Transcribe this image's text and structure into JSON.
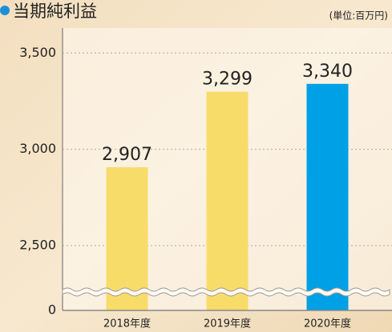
{
  "chart_data": {
    "type": "bar",
    "title": "当期純利益",
    "subtitle": "(単位:百万円)",
    "categories": [
      "2018年度",
      "2019年度",
      "2020年度"
    ],
    "values": [
      2907,
      3299,
      3340
    ],
    "value_labels": [
      "2,907",
      "3,299",
      "3,340"
    ],
    "colors": [
      "#f8dc6a",
      "#f8dc6a",
      "#00a0e6"
    ],
    "ylim": [
      0,
      3630
    ],
    "axis_break": [
      0,
      2500
    ],
    "yticks": [
      0,
      {
        "value": 2500,
        "label": "2,500"
      },
      {
        "value": 3000,
        "label": "3,000"
      },
      {
        "value": 3500,
        "label": "3,500"
      }
    ],
    "grid": true
  }
}
